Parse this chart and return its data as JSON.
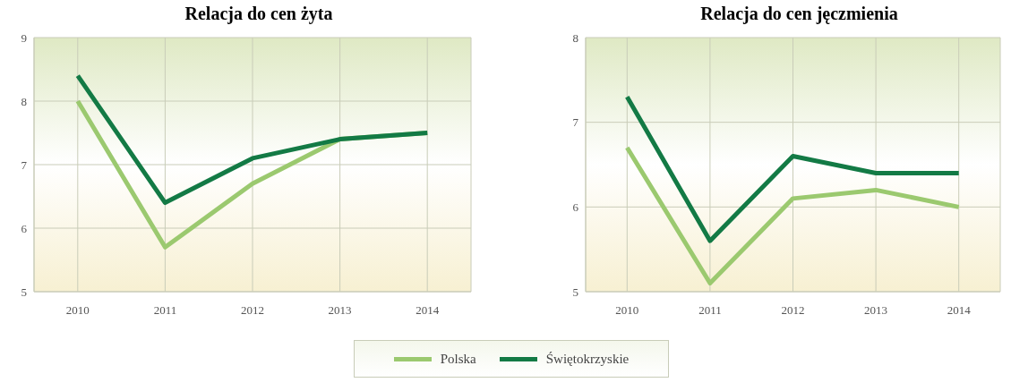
{
  "chart_data": [
    {
      "type": "line",
      "title": "Relacja do cen żyta",
      "categories": [
        "2010",
        "2011",
        "2012",
        "2013",
        "2014"
      ],
      "series": [
        {
          "name": "Polska",
          "color": "#9bc96f",
          "values": [
            8.0,
            5.7,
            6.7,
            7.4,
            7.5
          ]
        },
        {
          "name": "Świętokrzyskie",
          "color": "#137a45",
          "values": [
            8.4,
            6.4,
            7.1,
            7.4,
            7.5
          ]
        }
      ],
      "ylim": [
        5,
        9
      ],
      "yticks": [
        5,
        6,
        7,
        8,
        9
      ],
      "grid": true,
      "marker": "none",
      "line_style": "solid",
      "legend": "bottom"
    },
    {
      "type": "line",
      "title": "Relacja do cen jęczmienia",
      "categories": [
        "2010",
        "2011",
        "2012",
        "2013",
        "2014"
      ],
      "series": [
        {
          "color": "#9bc96f",
          "values": [
            6.7,
            5.1,
            6.1,
            6.2,
            6.0
          ]
        },
        {
          "color": "#137a45",
          "values": [
            7.3,
            5.6,
            6.6,
            6.4,
            6.4
          ]
        }
      ],
      "ylim": [
        5,
        8
      ],
      "yticks": [
        5,
        6,
        7,
        8
      ],
      "grid": true,
      "marker": "none",
      "line_style": "solid"
    }
  ]
}
